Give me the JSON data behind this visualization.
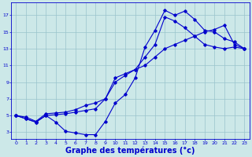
{
  "background_color": "#cce8e8",
  "grid_color": "#99c4cc",
  "line_color": "#0000cc",
  "xlabel": "Graphe des températures (°c)",
  "xlabel_fontsize": 7,
  "yticks": [
    3,
    5,
    7,
    9,
    11,
    13,
    15,
    17
  ],
  "xticks": [
    0,
    1,
    2,
    3,
    4,
    5,
    6,
    7,
    8,
    9,
    10,
    11,
    12,
    13,
    14,
    15,
    16,
    17,
    18,
    19,
    20,
    21,
    22,
    23
  ],
  "xlim": [
    -0.5,
    23.5
  ],
  "ylim": [
    2.2,
    18.5
  ],
  "line1_x": [
    0,
    1,
    2,
    3,
    4,
    5,
    6,
    7,
    8,
    9,
    10,
    11,
    12,
    13,
    14,
    15,
    16,
    17,
    18,
    19,
    20,
    21,
    22,
    23
  ],
  "line1_y": [
    5.0,
    4.6,
    4.2,
    5.0,
    4.2,
    3.1,
    2.9,
    2.7,
    2.7,
    4.3,
    6.5,
    7.5,
    9.5,
    13.2,
    15.2,
    17.6,
    17.0,
    17.5,
    16.5,
    15.2,
    15.0,
    14.2,
    13.8,
    13.0
  ],
  "line2_x": [
    0,
    1,
    2,
    3,
    4,
    5,
    6,
    7,
    8,
    9,
    10,
    11,
    12,
    13,
    14,
    15,
    16,
    17,
    18,
    19,
    20,
    21,
    22,
    23
  ],
  "line2_y": [
    5.0,
    4.6,
    4.2,
    5.0,
    5.1,
    5.2,
    5.4,
    5.6,
    5.8,
    7.0,
    9.0,
    9.8,
    10.5,
    12.0,
    13.5,
    16.8,
    16.3,
    15.5,
    14.5,
    13.5,
    13.2,
    13.0,
    13.2,
    13.0
  ],
  "line3_x": [
    0,
    1,
    2,
    3,
    4,
    5,
    6,
    7,
    8,
    9,
    10,
    11,
    12,
    13,
    14,
    15,
    16,
    17,
    18,
    19,
    20,
    21,
    22,
    23
  ],
  "line3_y": [
    5.0,
    4.8,
    4.3,
    5.2,
    5.3,
    5.4,
    5.7,
    6.2,
    6.5,
    7.0,
    9.5,
    10.0,
    10.5,
    11.0,
    12.0,
    13.0,
    13.5,
    14.0,
    14.5,
    15.0,
    15.3,
    15.8,
    13.5,
    13.0
  ]
}
